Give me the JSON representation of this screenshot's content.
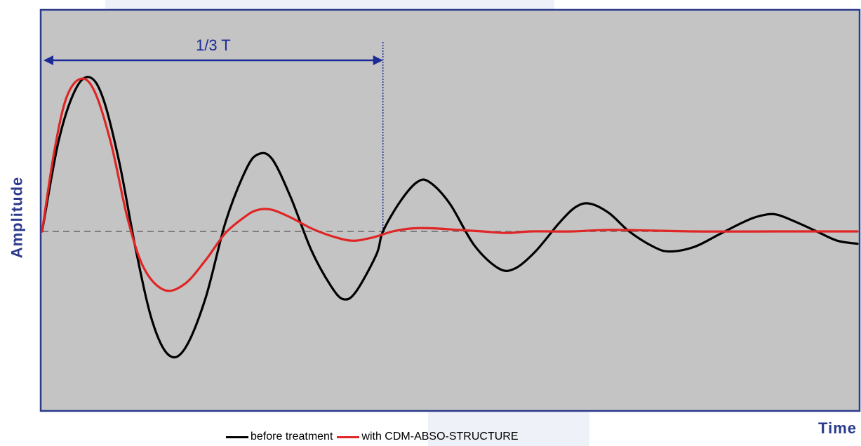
{
  "chart_data": {
    "type": "line",
    "title": "",
    "xlabel": "Time",
    "ylabel": "Amplitude",
    "xlim": [
      0,
      1
    ],
    "ylim": [
      -1.1,
      1.1
    ],
    "baseline": 0,
    "grid": false,
    "legend_position": "bottom",
    "plot_background": "#c4c4c4",
    "frame_color": "#2b3a8a",
    "annotation": {
      "text": "1/3 T",
      "x_start": 0,
      "x_end": 0.418,
      "color": "#1c2a96"
    },
    "series": [
      {
        "name": "before treatment",
        "color": "#000000",
        "points": [
          [
            0.0,
            0.0
          ],
          [
            0.02,
            0.58
          ],
          [
            0.04,
            0.91
          ],
          [
            0.058,
            1.0
          ],
          [
            0.075,
            0.86
          ],
          [
            0.095,
            0.44
          ],
          [
            0.115,
            -0.12
          ],
          [
            0.135,
            -0.58
          ],
          [
            0.155,
            -0.8
          ],
          [
            0.175,
            -0.76
          ],
          [
            0.2,
            -0.44
          ],
          [
            0.225,
            0.06
          ],
          [
            0.25,
            0.4
          ],
          [
            0.265,
            0.5
          ],
          [
            0.282,
            0.47
          ],
          [
            0.305,
            0.22
          ],
          [
            0.33,
            -0.12
          ],
          [
            0.355,
            -0.36
          ],
          [
            0.37,
            -0.44
          ],
          [
            0.385,
            -0.39
          ],
          [
            0.41,
            -0.15
          ],
          [
            0.418,
            0.0
          ],
          [
            0.44,
            0.2
          ],
          [
            0.46,
            0.32
          ],
          [
            0.475,
            0.32
          ],
          [
            0.5,
            0.18
          ],
          [
            0.53,
            -0.09
          ],
          [
            0.56,
            -0.24
          ],
          [
            0.58,
            -0.24
          ],
          [
            0.605,
            -0.13
          ],
          [
            0.635,
            0.06
          ],
          [
            0.655,
            0.16
          ],
          [
            0.672,
            0.18
          ],
          [
            0.695,
            0.12
          ],
          [
            0.72,
            0.0
          ],
          [
            0.75,
            -0.1
          ],
          [
            0.77,
            -0.13
          ],
          [
            0.8,
            -0.1
          ],
          [
            0.83,
            -0.02
          ],
          [
            0.86,
            0.06
          ],
          [
            0.88,
            0.1
          ],
          [
            0.9,
            0.11
          ],
          [
            0.925,
            0.06
          ],
          [
            0.95,
            0.0
          ],
          [
            0.975,
            -0.06
          ],
          [
            1.0,
            -0.08
          ]
        ]
      },
      {
        "name": "with CDM-ABSO-STRUCTURE",
        "color": "#e02525",
        "points": [
          [
            0.0,
            0.0
          ],
          [
            0.015,
            0.52
          ],
          [
            0.03,
            0.87
          ],
          [
            0.048,
            0.99
          ],
          [
            0.065,
            0.9
          ],
          [
            0.085,
            0.56
          ],
          [
            0.105,
            0.08
          ],
          [
            0.125,
            -0.24
          ],
          [
            0.15,
            -0.38
          ],
          [
            0.175,
            -0.34
          ],
          [
            0.2,
            -0.19
          ],
          [
            0.225,
            -0.01
          ],
          [
            0.25,
            0.1
          ],
          [
            0.265,
            0.14
          ],
          [
            0.282,
            0.14
          ],
          [
            0.305,
            0.09
          ],
          [
            0.33,
            0.02
          ],
          [
            0.355,
            -0.03
          ],
          [
            0.38,
            -0.06
          ],
          [
            0.405,
            -0.04
          ],
          [
            0.43,
            0.0
          ],
          [
            0.455,
            0.02
          ],
          [
            0.48,
            0.02
          ],
          [
            0.51,
            0.01
          ],
          [
            0.54,
            0.0
          ],
          [
            0.57,
            -0.01
          ],
          [
            0.6,
            0.0
          ],
          [
            0.65,
            0.0
          ],
          [
            0.7,
            0.01
          ],
          [
            0.8,
            0.0
          ],
          [
            0.9,
            0.0
          ],
          [
            1.0,
            0.0
          ]
        ]
      }
    ]
  }
}
